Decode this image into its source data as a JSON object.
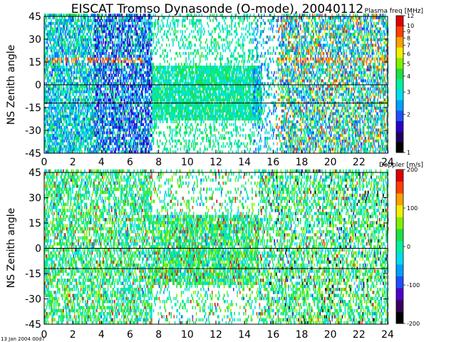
{
  "title": "EISCAT Tromso Dynasonde (O-mode),  20040112",
  "timestamp": "13 Jan 2004 00d7",
  "chart_data": [
    {
      "type": "heatmap",
      "xlabel": "",
      "ylabel": "NS Zenith angle",
      "xlim": [
        0,
        24
      ],
      "ylim": [
        -45,
        45
      ],
      "xticks": [
        "0",
        "2",
        "4",
        "6",
        "8",
        "10",
        "12",
        "14",
        "16",
        "18",
        "20",
        "22",
        "24"
      ],
      "yticks": [
        "-45",
        "-30",
        "-15",
        "0",
        "15",
        "30",
        "45"
      ],
      "reference_lines_y": [
        0,
        -12
      ],
      "colorbar": {
        "label": "Plasma freq [MHz]",
        "scale": "log",
        "range": [
          1,
          12
        ],
        "ticks": [
          "1",
          "2",
          "3",
          "4",
          "5",
          "6",
          "7",
          "8",
          "9",
          "10",
          "12"
        ],
        "colors": [
          "#000000",
          "#1f0060",
          "#2a00c8",
          "#1e50ff",
          "#00a0ff",
          "#00ddee",
          "#00f0a0",
          "#20e040",
          "#80f000",
          "#f0f000",
          "#ffa000",
          "#ff4000",
          "#e00000"
        ]
      },
      "cloud": "plasma"
    },
    {
      "type": "heatmap",
      "xlabel": "",
      "ylabel": "NS Zenith angle",
      "xlim": [
        0,
        24
      ],
      "ylim": [
        -45,
        45
      ],
      "xticks": [
        "0",
        "2",
        "4",
        "6",
        "8",
        "10",
        "12",
        "14",
        "16",
        "18",
        "20",
        "22",
        "24"
      ],
      "yticks": [
        "-45",
        "-30",
        "-15",
        "0",
        "15",
        "30",
        "45"
      ],
      "reference_lines_y": [
        0,
        -12
      ],
      "colorbar": {
        "label": "Doppler [m/s]",
        "scale": "linear",
        "range": [
          -200,
          200
        ],
        "ticks": [
          "-200",
          "-100",
          "0",
          "100",
          "200"
        ],
        "colors": [
          "#000000",
          "#3a0060",
          "#5000c8",
          "#1e50ff",
          "#00a0ff",
          "#00ddee",
          "#00f0a0",
          "#20e040",
          "#80f000",
          "#f0f000",
          "#ffa000",
          "#ff4000",
          "#e00000"
        ]
      },
      "cloud": "doppler"
    }
  ]
}
